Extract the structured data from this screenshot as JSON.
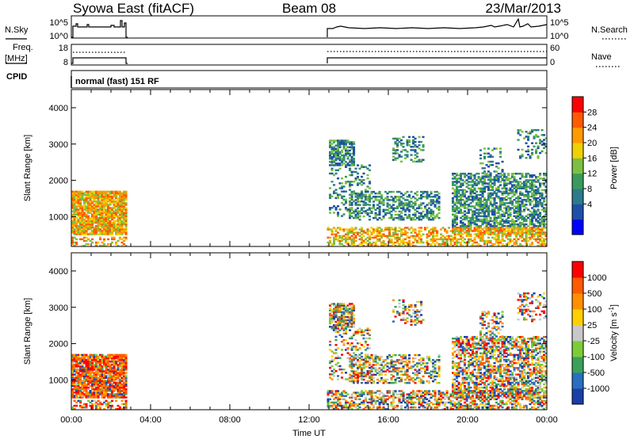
{
  "header": {
    "title": "Syowa East (fitACF)",
    "beam": "Beam 08",
    "date": "23/Mar/2013"
  },
  "panels": {
    "nsky_label": "N.Sky",
    "nsky_ticks": [
      "10^5",
      "10^0"
    ],
    "nsearch_label": "N.Search",
    "nsearch_ticks": [
      "10^5",
      "10^0"
    ],
    "freq_label_1": "Freq.",
    "freq_label_2": "[MHz]",
    "freq_ticks": [
      "18",
      "8"
    ],
    "nave_label": "Nave",
    "nave_ticks": [
      "60",
      "0"
    ],
    "cpid_label": "CPID",
    "cpid_text": "normal (fast) 151 RF"
  },
  "colors": {
    "power": [
      "#0000ff",
      "#1f4fa8",
      "#2d7a8c",
      "#3a9a5c",
      "#7bc043",
      "#f0d000",
      "#ff9a00",
      "#ff5a00",
      "#ff0000"
    ],
    "velocity": [
      "#1a3fa8",
      "#2a6ec0",
      "#3aa05a",
      "#7ccc3a",
      "#c8c8c8",
      "#ffd000",
      "#ff9000",
      "#ff5a00",
      "#ff0000"
    ]
  },
  "chart_data": [
    {
      "type": "heatmap",
      "title": "Power",
      "ylabel": "Slant Range [km]",
      "xlabel": "",
      "ylim": [
        180,
        4500
      ],
      "x_ticks": [
        "00:00",
        "04:00",
        "08:00",
        "12:00",
        "16:00",
        "20:00",
        "00:00"
      ],
      "y_ticks": [
        1000,
        2000,
        3000,
        4000
      ],
      "colorbar_label": "Power [dB]",
      "colorbar_ticks": [
        "28",
        "24",
        "20",
        "16",
        "12",
        "8",
        "4"
      ],
      "data_windows_ut": [
        [
          0.0,
          2.75
        ],
        [
          12.9,
          24.0
        ]
      ]
    },
    {
      "type": "heatmap",
      "title": "Velocity",
      "ylabel": "Slant Range [km]",
      "xlabel": "Time UT",
      "ylim": [
        180,
        4500
      ],
      "x_ticks": [
        "00:00",
        "04:00",
        "08:00",
        "12:00",
        "16:00",
        "20:00",
        "00:00"
      ],
      "y_ticks": [
        1000,
        2000,
        3000,
        4000
      ],
      "colorbar_label": "Velocity [m s",
      "colorbar_label_sup": "-1",
      "colorbar_label_end": "]",
      "colorbar_ticks": [
        "1000",
        "500",
        "100",
        "25",
        "-25",
        "-100",
        "-500",
        "-1000"
      ],
      "data_windows_ut": [
        [
          0.0,
          2.75
        ],
        [
          12.9,
          24.0
        ]
      ]
    }
  ]
}
